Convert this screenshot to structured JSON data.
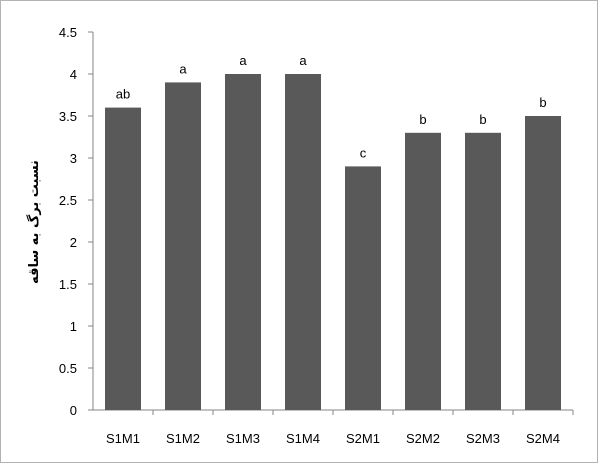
{
  "chart_data": {
    "type": "bar",
    "title": "",
    "xlabel": "",
    "ylabel": "نسبت برگ به ساقه",
    "ylim": [
      0,
      4.5
    ],
    "yticks": [
      "0",
      "0.5",
      "1",
      "1.5",
      "2",
      "2.5",
      "3",
      "3.5",
      "4",
      "4.5"
    ],
    "ytick_values": [
      0,
      0.5,
      1,
      1.5,
      2,
      2.5,
      3,
      3.5,
      4,
      4.5
    ],
    "grid": false,
    "legend": "none",
    "bar_color": "#595959",
    "categories": [
      "S1M1",
      "S1M2",
      "S1M3",
      "S1M4",
      "S2M1",
      "S2M2",
      "S2M3",
      "S2M4"
    ],
    "values": [
      3.6,
      3.9,
      4.0,
      4.0,
      2.9,
      3.3,
      3.3,
      3.5
    ],
    "bar_labels": [
      "ab",
      "a",
      "a",
      "a",
      "c",
      "b",
      "b",
      "b"
    ]
  }
}
